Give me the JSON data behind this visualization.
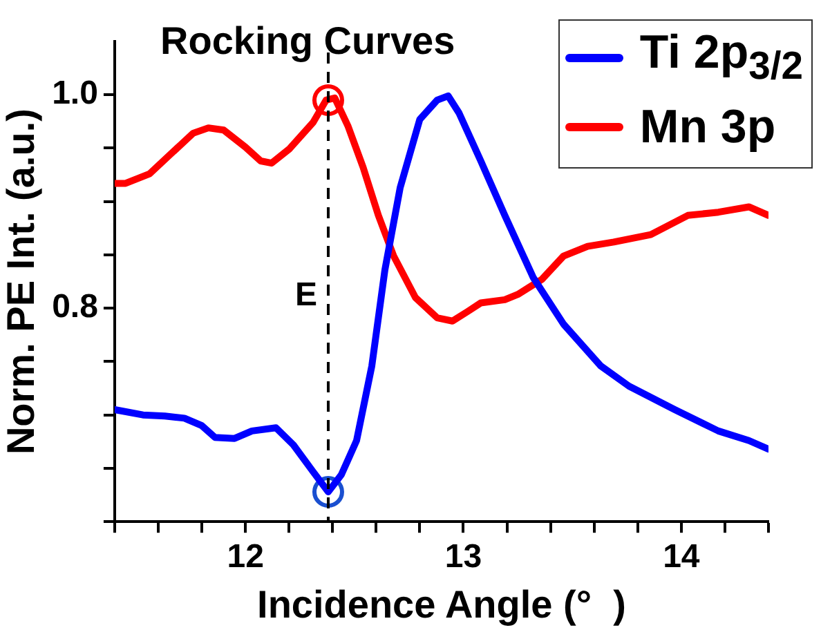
{
  "chart_data": {
    "type": "line",
    "title": "Rocking Curves",
    "xlabel": "Incidence Angle (°  )",
    "ylabel": "Norm. PE Int. (a.u.)",
    "xlim": [
      11.4,
      14.4
    ],
    "ylim": [
      0.6,
      1.05
    ],
    "xticks": [
      {
        "value": 11.4,
        "label": null
      },
      {
        "value": 11.6,
        "label": null
      },
      {
        "value": 11.8,
        "label": null
      },
      12,
      {
        "value": 12.2,
        "label": null
      },
      {
        "value": 12.4,
        "label": null
      },
      {
        "value": 12.6,
        "label": null
      },
      {
        "value": 12.8,
        "label": null
      },
      13,
      {
        "value": 13.2,
        "label": null
      },
      {
        "value": 13.4,
        "label": null
      },
      {
        "value": 13.6,
        "label": null
      },
      {
        "value": 13.8,
        "label": null
      },
      14,
      {
        "value": 14.2,
        "label": null
      },
      {
        "value": 14.4,
        "label": null
      }
    ],
    "yticks": [
      {
        "value": 0.6,
        "label": null
      },
      {
        "value": 0.65,
        "label": null
      },
      {
        "value": 0.7,
        "label": null
      },
      {
        "value": 0.75,
        "label": null
      },
      0.8,
      {
        "value": 0.85,
        "label": null
      },
      {
        "value": 0.9,
        "label": null
      },
      {
        "value": 0.95,
        "label": null
      },
      {
        "value": 1,
        "label": "1.0"
      }
    ],
    "grid": false,
    "legend": "top right",
    "line_style": "solid",
    "ref_lines": [
      {
        "axis": "x",
        "value": 12.38,
        "label": "E",
        "color": "#000000",
        "line_style": "dashed"
      }
    ],
    "series": [
      {
        "name": "Ti 2p$_{3/2}$",
        "type": "line",
        "color": "#0000ff",
        "marker": "none",
        "x": [
          11.4,
          11.53,
          11.63,
          11.72,
          11.8,
          11.86,
          11.95,
          12.03,
          12.14,
          12.22,
          12.31,
          12.38,
          12.44,
          12.51,
          12.58,
          12.64,
          12.71,
          12.8,
          12.88,
          12.93,
          12.98,
          13.08,
          13.19,
          13.32,
          13.46,
          13.63,
          13.76,
          13.97,
          14.17,
          14.31,
          14.4
        ],
        "values": [
          0.705,
          0.7,
          0.699,
          0.697,
          0.69,
          0.679,
          0.678,
          0.685,
          0.688,
          0.672,
          0.647,
          0.628,
          0.644,
          0.676,
          0.746,
          0.836,
          0.913,
          0.977,
          0.995,
          0.999,
          0.983,
          0.938,
          0.887,
          0.829,
          0.785,
          0.746,
          0.727,
          0.705,
          0.685,
          0.676,
          0.668
        ]
      },
      {
        "name": "Mn 3p",
        "type": "line",
        "color": "#ff0000",
        "marker": "none",
        "x": [
          11.4,
          11.45,
          11.56,
          11.66,
          11.76,
          11.83,
          11.9,
          12.0,
          12.07,
          12.12,
          12.2,
          12.31,
          12.37,
          12.41,
          12.47,
          12.54,
          12.61,
          12.68,
          12.78,
          12.88,
          12.95,
          13.02,
          13.08,
          13.19,
          13.25,
          13.36,
          13.46,
          13.57,
          13.69,
          13.86,
          14.03,
          14.17,
          14.31,
          14.4
        ],
        "values": [
          0.917,
          0.917,
          0.926,
          0.945,
          0.964,
          0.969,
          0.967,
          0.951,
          0.938,
          0.936,
          0.949,
          0.974,
          0.995,
          0.997,
          0.971,
          0.932,
          0.887,
          0.849,
          0.81,
          0.791,
          0.788,
          0.797,
          0.805,
          0.808,
          0.813,
          0.827,
          0.849,
          0.858,
          0.862,
          0.869,
          0.887,
          0.89,
          0.895,
          0.887
        ]
      },
      {
        "type": "scatter",
        "color": "#ff0000",
        "marker": "circle",
        "x": [
          12.38
        ],
        "values": [
          0.995
        ]
      },
      {
        "type": "scatter",
        "color": "#1a4fd0",
        "marker": "circle",
        "x": [
          12.38
        ],
        "values": [
          0.628
        ]
      }
    ]
  }
}
